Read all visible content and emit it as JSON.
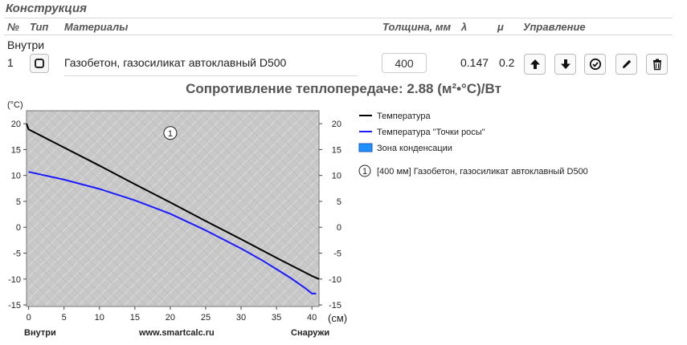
{
  "section": {
    "title": "Конструкция"
  },
  "columns": {
    "num": "№",
    "type": "Тип",
    "materials": "Материалы",
    "thickness": "Толщина, мм",
    "lambda": "λ",
    "mu": "μ",
    "control": "Управление"
  },
  "side_inside": "Внутри",
  "layer": {
    "index": "1",
    "material": "Газобетон, газосиликат автоклавный D500",
    "thickness": "400",
    "lambda": "0.147",
    "mu": "0.2"
  },
  "icons": {
    "type": "square-icon",
    "up": "arrow-up-icon",
    "down": "arrow-down-icon",
    "check": "check-circle-icon",
    "edit": "pencil-icon",
    "delete": "trash-icon"
  },
  "resistance": "Сопротивление теплопередаче: 2.88 (м²•°С)/Вт",
  "chart_data": {
    "type": "line",
    "ylabel": "(°C)",
    "xlabel": "(см)",
    "xlim": [
      -0.3,
      41
    ],
    "ylim": [
      -15.3,
      22.5
    ],
    "x_ticks": [
      0,
      5,
      10,
      15,
      20,
      25,
      30,
      35,
      40
    ],
    "y_ticks": [
      20,
      15,
      10,
      5,
      0,
      -5,
      -10,
      -15
    ],
    "inside_label": "Внутри",
    "outside_label": "Снаружи",
    "site_label": "www.smartcalc.ru",
    "layer_marker": {
      "label": "1",
      "x": 20,
      "y": 18.2
    },
    "series": [
      {
        "name": "Температура",
        "color": "#000000",
        "x": [
          -1,
          0,
          5,
          10,
          15,
          20,
          25,
          30,
          35,
          40,
          41
        ],
        "y": [
          20,
          18.9,
          15.4,
          11.9,
          8.3,
          4.8,
          1.2,
          -2.3,
          -5.9,
          -9.4,
          -10
        ]
      },
      {
        "name": "Температура \"Точки росы\"",
        "color": "#1a1aff",
        "x": [
          0,
          5,
          10,
          15,
          20,
          25,
          30,
          33,
          35,
          37,
          39,
          40,
          40.6
        ],
        "y": [
          10.7,
          9.2,
          7.4,
          5.2,
          2.6,
          -0.6,
          -4.1,
          -6.4,
          -8.1,
          -9.8,
          -11.7,
          -12.8,
          -12.8
        ]
      }
    ],
    "condensation_zone": {
      "name": "Зона конденсации",
      "color": "#1e90ff"
    },
    "layer_legend": "[400 мм] Газобетон, газосиликат автоклавный D500",
    "grid": false,
    "legend_position": "right"
  }
}
